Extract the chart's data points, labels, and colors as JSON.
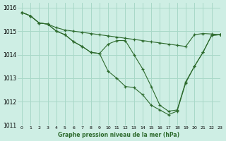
{
  "title": "Graphe pression niveau de la mer (hPa)",
  "background_color": "#ceeee4",
  "grid_color": "#a8d8c8",
  "line_color": "#2d6a2d",
  "xlim": [
    -0.5,
    23
  ],
  "ylim": [
    1011,
    1016.2
  ],
  "xticks": [
    0,
    1,
    2,
    3,
    4,
    5,
    6,
    7,
    8,
    9,
    10,
    11,
    12,
    13,
    14,
    15,
    16,
    17,
    18,
    19,
    20,
    21,
    22,
    23
  ],
  "yticks": [
    1011,
    1012,
    1013,
    1014,
    1015,
    1016
  ],
  "series": [
    {
      "x": [
        0,
        1,
        2,
        3,
        4,
        5,
        6,
        7,
        8,
        9,
        10,
        11,
        12,
        13,
        14,
        15,
        16,
        17,
        18,
        19,
        20,
        21,
        22,
        23
      ],
      "y": [
        1015.8,
        1015.65,
        1015.35,
        1015.3,
        1015.15,
        1015.05,
        1015.0,
        1014.95,
        1014.9,
        1014.85,
        1014.8,
        1014.75,
        1014.7,
        1014.65,
        1014.6,
        1014.55,
        1014.5,
        1014.45,
        1014.4,
        1014.35,
        1014.85,
        1014.9,
        1014.88,
        1014.85
      ]
    },
    {
      "x": [
        0,
        1,
        2,
        3,
        4,
        5,
        6,
        7,
        8,
        9,
        10,
        11,
        12,
        13,
        14,
        15,
        16,
        17,
        18,
        19,
        20,
        21,
        22,
        23
      ],
      "y": [
        1015.8,
        1015.65,
        1015.35,
        1015.3,
        1015.0,
        1014.85,
        1014.55,
        1014.35,
        1014.1,
        1014.05,
        1014.45,
        1014.6,
        1014.6,
        1014.0,
        1013.4,
        1012.65,
        1011.85,
        1011.6,
        1011.65,
        1012.85,
        1013.5,
        1014.1,
        1014.82,
        1014.85
      ]
    },
    {
      "x": [
        0,
        1,
        2,
        3,
        4,
        5,
        6,
        7,
        8,
        9,
        10,
        11,
        12,
        13,
        14,
        15,
        16,
        17,
        18,
        19,
        20,
        21,
        22,
        23
      ],
      "y": [
        1015.8,
        1015.65,
        1015.35,
        1015.3,
        1015.0,
        1014.85,
        1014.55,
        1014.35,
        1014.1,
        1014.05,
        1013.3,
        1013.0,
        1012.65,
        1012.6,
        1012.3,
        1011.85,
        1011.65,
        1011.45,
        1011.6,
        1012.8,
        1013.5,
        1014.1,
        1014.82,
        1014.85
      ]
    }
  ]
}
